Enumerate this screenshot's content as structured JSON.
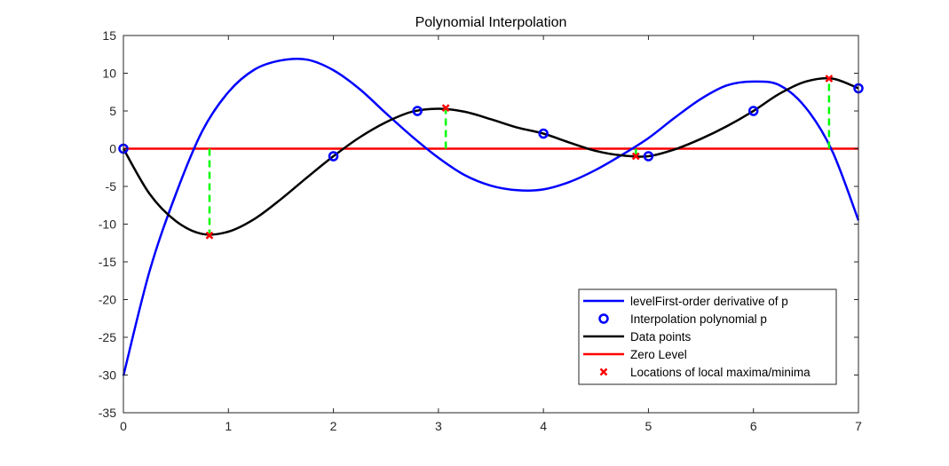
{
  "chart_data": {
    "type": "line",
    "title": "Polynomial Interpolation",
    "xlabel": "",
    "ylabel": "",
    "xlim": [
      0,
      7
    ],
    "ylim": [
      -35,
      15
    ],
    "xticks": [
      0,
      1,
      2,
      3,
      4,
      5,
      6,
      7
    ],
    "yticks": [
      15,
      10,
      5,
      0,
      -5,
      -10,
      -15,
      -20,
      -25,
      -30,
      -35
    ],
    "grid": false,
    "legend_position": "bottom-right",
    "series": [
      {
        "name": "levelFirst-order derivative of p",
        "style": "line",
        "color": "#0000ff",
        "x": [
          0,
          0.25,
          0.5,
          0.75,
          1.0,
          1.25,
          1.5,
          1.75,
          2.0,
          2.25,
          2.5,
          2.75,
          3.0,
          3.25,
          3.5,
          3.75,
          4.0,
          4.25,
          4.5,
          4.75,
          5.0,
          5.25,
          5.5,
          5.75,
          6.0,
          6.25,
          6.5,
          6.75,
          7.0
        ],
        "y": [
          -30.1,
          -16.2,
          -6.0,
          2.3,
          7.5,
          10.5,
          11.7,
          11.8,
          10.4,
          7.9,
          4.7,
          1.6,
          -1.2,
          -3.5,
          -4.9,
          -5.5,
          -5.4,
          -4.4,
          -2.8,
          -0.8,
          1.4,
          4.1,
          6.6,
          8.4,
          8.9,
          8.4,
          5.4,
          -0.3,
          -9.5
        ]
      },
      {
        "name": "Interpolation polynomial p",
        "style": "markers",
        "marker": "circle",
        "color": "#0000ff",
        "x": [
          0,
          2,
          2.8,
          4,
          5,
          6,
          7
        ],
        "y": [
          0,
          -1,
          5,
          2,
          -1,
          5,
          8
        ]
      },
      {
        "name": "Data points",
        "style": "line",
        "color": "#000000",
        "x": [
          0,
          0.25,
          0.5,
          0.75,
          1.0,
          1.25,
          1.5,
          1.75,
          2.0,
          2.25,
          2.5,
          2.75,
          3.0,
          3.25,
          3.5,
          3.75,
          4.0,
          4.25,
          4.5,
          4.75,
          5.0,
          5.25,
          5.5,
          5.75,
          6.0,
          6.25,
          6.5,
          6.75,
          7.0
        ],
        "y": [
          0,
          -6.0,
          -9.6,
          -11.3,
          -11.0,
          -9.3,
          -6.7,
          -3.8,
          -1.0,
          1.5,
          3.5,
          4.9,
          5.3,
          4.9,
          3.9,
          2.8,
          2.0,
          0.8,
          -0.3,
          -0.9,
          -1.0,
          -0.1,
          1.3,
          3.0,
          5.0,
          7.3,
          8.9,
          9.3,
          8.0
        ]
      },
      {
        "name": "Zero Level",
        "style": "line",
        "color": "#ff0000",
        "x": [
          0,
          7
        ],
        "y": [
          0,
          0
        ]
      },
      {
        "name": "Locations of local maxima/minima",
        "style": "markers",
        "marker": "x",
        "color": "#ff0000",
        "x": [
          0.82,
          3.07,
          4.88,
          6.72
        ],
        "y": [
          -11.5,
          5.4,
          -1.0,
          9.3
        ]
      }
    ],
    "connectors": {
      "style": "dashed",
      "color": "#00ff00",
      "x": [
        0.82,
        3.07,
        4.88,
        6.72
      ],
      "y_from": [
        0,
        0,
        0,
        0
      ],
      "y_to": [
        -11.5,
        5.4,
        -1.0,
        9.3
      ]
    }
  }
}
